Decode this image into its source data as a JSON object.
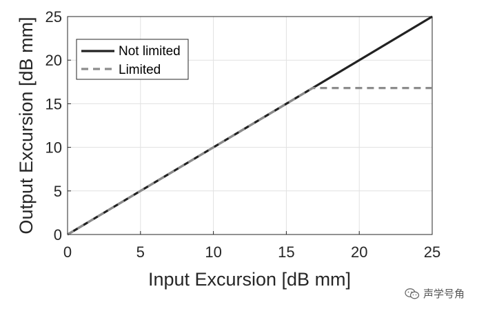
{
  "chart_data": {
    "type": "line",
    "xlabel": "Input Excursion [dB mm]",
    "ylabel": "Output Excursion [dB mm]",
    "xlim": [
      0,
      25
    ],
    "ylim": [
      0,
      25
    ],
    "xticks": [
      0,
      5,
      10,
      15,
      20,
      25
    ],
    "yticks": [
      0,
      5,
      10,
      15,
      20,
      25
    ],
    "grid": true,
    "legend_position": "top-left",
    "series": [
      {
        "name": "Not limited",
        "style": "solid",
        "color": "#222222",
        "x": [
          0,
          25
        ],
        "y": [
          0,
          25
        ]
      },
      {
        "name": "Limited",
        "style": "dashed",
        "color": "#8c8c8c",
        "x": [
          0,
          16.8,
          25
        ],
        "y": [
          0,
          16.8,
          16.8
        ]
      }
    ]
  },
  "watermark": {
    "text": "声学号角",
    "icon": "wechat-icon"
  }
}
